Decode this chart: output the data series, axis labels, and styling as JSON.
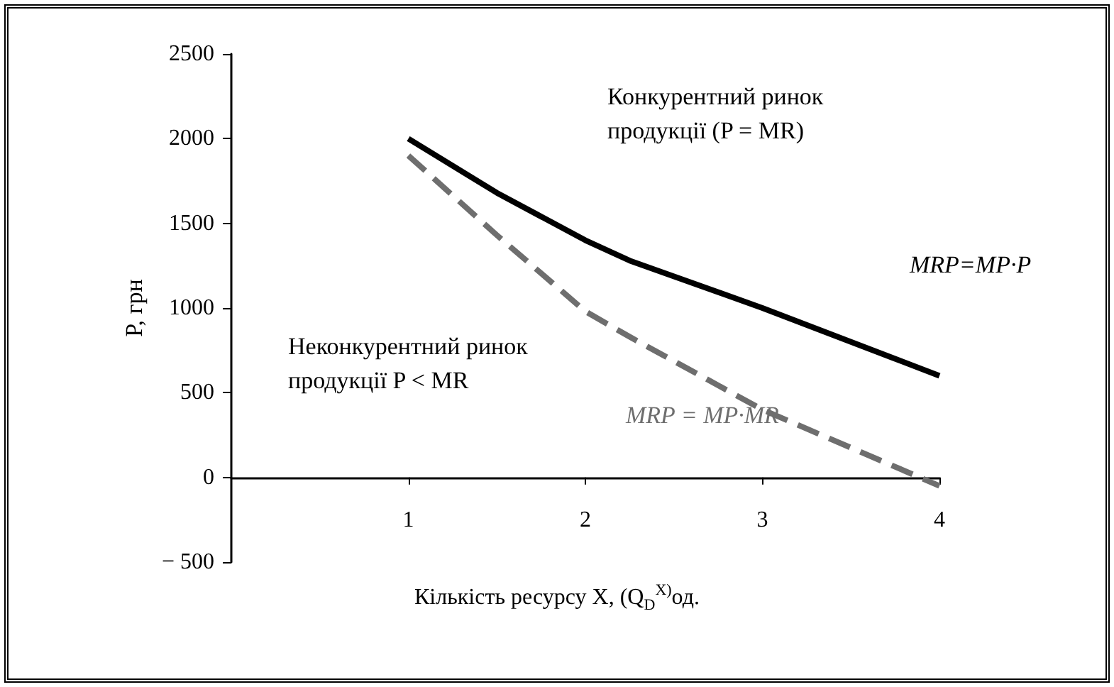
{
  "chart_data": {
    "type": "line",
    "xlabel": "Кількість ресурсу X, (Q$_{D}$$^{X)}$од.",
    "ylabel": "P, грн",
    "x": [
      1,
      1.5,
      2,
      2.25,
      3,
      4
    ],
    "series": [
      {
        "name": "MRP=MP·P",
        "color": "#000000",
        "line_style": "solid",
        "values": [
          2000,
          1680,
          1400,
          1280,
          1000,
          600
        ]
      },
      {
        "name": "MRP = MP·MR",
        "color": "#6e6e6e",
        "line_style": "dashed",
        "values": [
          1900,
          1430,
          980,
          830,
          400,
          -50
        ]
      }
    ],
    "xlim": [
      0,
      4
    ],
    "xticks": [
      1,
      2,
      3,
      4
    ],
    "ylim": [
      -500,
      2500
    ],
    "yticks": [
      -500,
      0,
      500,
      1000,
      1500,
      2000,
      2500
    ],
    "marker": "none",
    "grid": false,
    "legend": false,
    "annotations": [
      "Конкурентний ринок\nпродукції (P = MR)",
      "Неконкурентний ринок\nпродукції P < MR"
    ]
  }
}
